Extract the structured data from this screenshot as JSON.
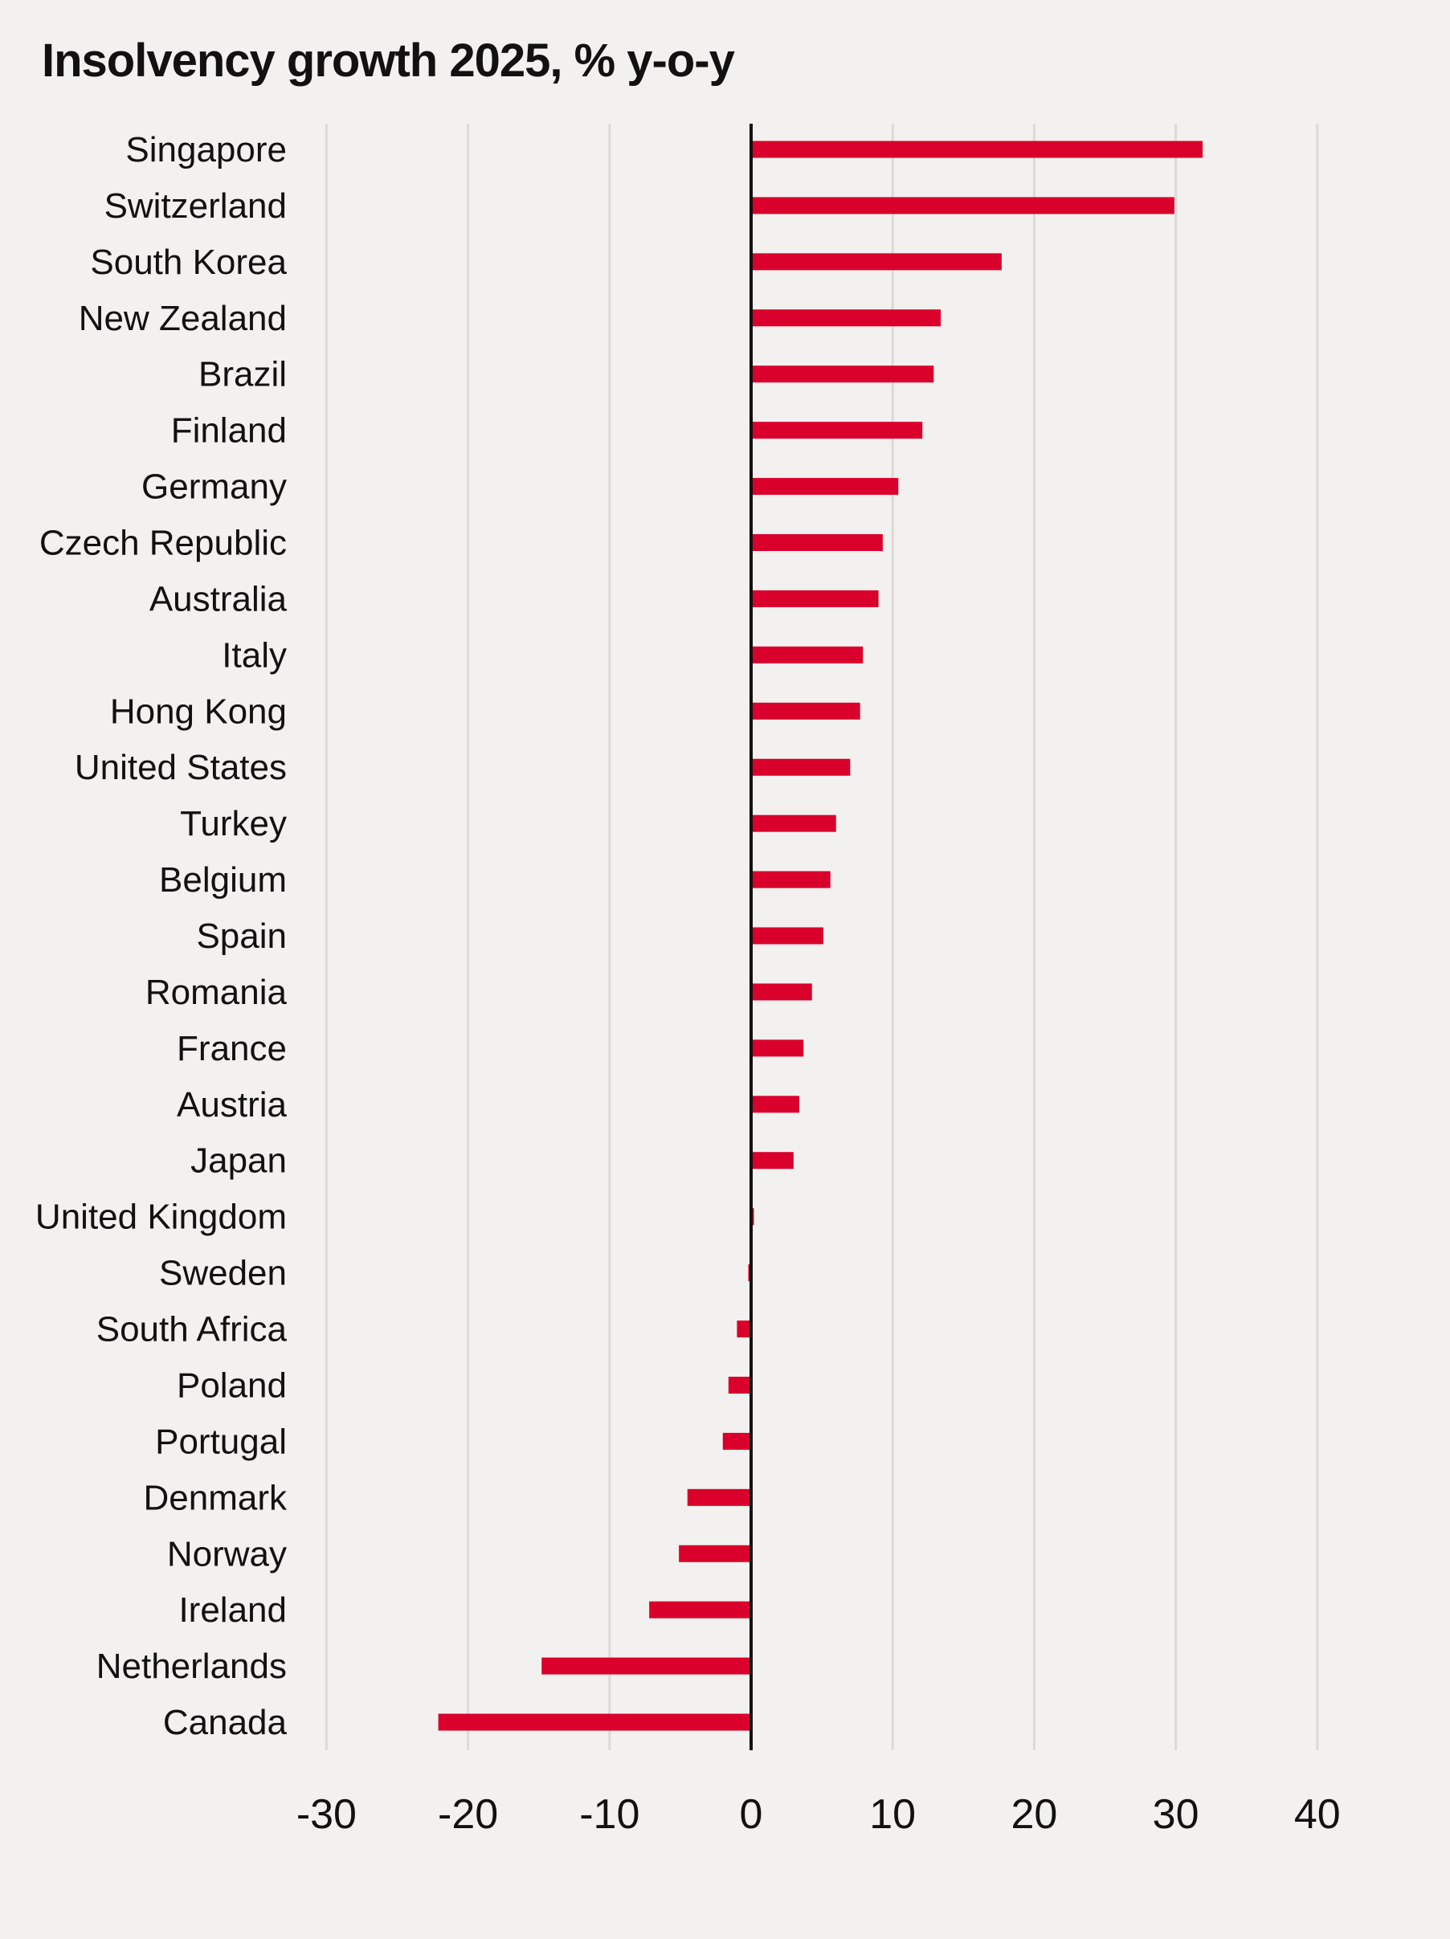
{
  "chart_data": {
    "type": "bar",
    "orientation": "horizontal",
    "title": "Insolvency growth 2025, % y-o-y",
    "xlabel": "",
    "ylabel": "",
    "xlim": [
      -30,
      40
    ],
    "xticks": [
      -30,
      -20,
      -10,
      0,
      10,
      20,
      30,
      40
    ],
    "grid": true,
    "bar_color": "#d9002b",
    "background_color": "#f2f1ef",
    "categories": [
      "Singapore",
      "Switzerland",
      "South Korea",
      "New Zealand",
      "Brazil",
      "Finland",
      "Germany",
      "Czech Republic",
      "Australia",
      "Italy",
      "Hong Kong",
      "United States",
      "Turkey",
      "Belgium",
      "Spain",
      "Romania",
      "France",
      "Austria",
      "Japan",
      "United Kingdom",
      "Sweden",
      "South Africa",
      "Poland",
      "Portugal",
      "Denmark",
      "Norway",
      "Ireland",
      "Netherlands",
      "Canada"
    ],
    "values": [
      31.9,
      29.9,
      17.7,
      13.4,
      12.9,
      12.1,
      10.4,
      9.3,
      9.0,
      7.9,
      7.7,
      7.0,
      6.0,
      5.6,
      5.1,
      4.3,
      3.7,
      3.4,
      3.0,
      0.2,
      -0.2,
      -1.0,
      -1.6,
      -2.0,
      -4.5,
      -5.1,
      -7.2,
      -14.8,
      -22.1
    ]
  }
}
